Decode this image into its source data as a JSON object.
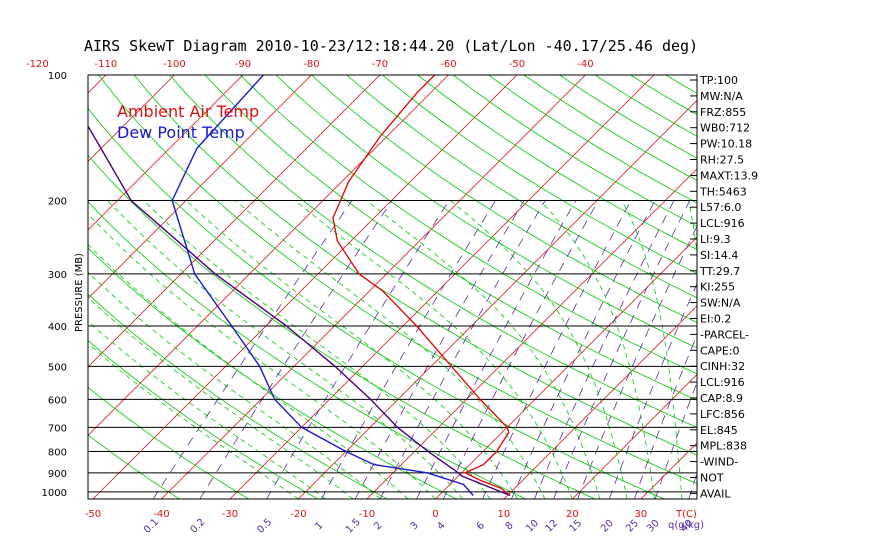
{
  "chart_data": {
    "type": "line",
    "title": "AIRS SkewT Diagram 2010-10-23/12:18:44.20 (Lat/Lon -40.17/25.46 deg)",
    "ylabel": "PRESSURE (MB)",
    "xlabel": "T(C)",
    "mixing_ratio_label": "q(g/kg)",
    "y_scale": "log",
    "ylim": [
      1040,
      100
    ],
    "xlim_bottom": [
      -53,
      40
    ],
    "pressure_ticks": [
      100,
      200,
      300,
      400,
      500,
      600,
      700,
      800,
      900,
      1000
    ],
    "bottom_temp_ticks": [
      -50,
      -40,
      -30,
      -20,
      -10,
      0,
      10,
      20,
      30
    ],
    "top_temp_ticks": [
      -120,
      -110,
      -100,
      -90,
      -80,
      -70,
      -60,
      -50,
      -40
    ],
    "mixing_ratio_ticks": [
      "0.1",
      "0.2",
      "0.5",
      "1",
      "1.5",
      "2",
      "3",
      "4",
      "6",
      "8",
      "10",
      "12",
      "15",
      "20",
      "25",
      "30",
      "40"
    ],
    "legend": [
      {
        "name": "Ambient Air Temp",
        "color": "#e01010"
      },
      {
        "name": "Dew Point Temp",
        "color": "#1a1acc"
      }
    ],
    "colors": {
      "isotherm": "#e01010",
      "dry_adiabat": "#00c800",
      "moist_adiabat": "#00c800",
      "mixing_ratio": "#5a2ca0",
      "parcel": "#4b0082"
    },
    "series": [
      {
        "name": "Ambient Air Temp",
        "color": "#e01010",
        "points": [
          [
            1020,
            10.4
          ],
          [
            980,
            8
          ],
          [
            940,
            4
          ],
          [
            900,
            0.5
          ],
          [
            860,
            2
          ],
          [
            800,
            2
          ],
          [
            720,
            1
          ],
          [
            700,
            0
          ],
          [
            600,
            -8
          ],
          [
            500,
            -17
          ],
          [
            400,
            -28
          ],
          [
            330,
            -38
          ],
          [
            300,
            -44
          ],
          [
            250,
            -52
          ],
          [
            220,
            -56
          ],
          [
            180,
            -59
          ],
          [
            140,
            -61
          ],
          [
            110,
            -62
          ],
          [
            100,
            -62
          ]
        ]
      },
      {
        "name": "Dew Point Temp",
        "color": "#1a1acc",
        "points": [
          [
            1020,
            5
          ],
          [
            960,
            2
          ],
          [
            900,
            -5
          ],
          [
            860,
            -14
          ],
          [
            800,
            -20
          ],
          [
            700,
            -30
          ],
          [
            600,
            -38
          ],
          [
            500,
            -45
          ],
          [
            400,
            -55
          ],
          [
            300,
            -68
          ],
          [
            200,
            -82
          ],
          [
            150,
            -86
          ],
          [
            100,
            -87
          ]
        ]
      },
      {
        "name": "Parcel",
        "color": "#4b0082",
        "points": [
          [
            1020,
            10.4
          ],
          [
            916,
            0.5
          ],
          [
            900,
            -0.5
          ],
          [
            800,
            -8
          ],
          [
            700,
            -16
          ],
          [
            600,
            -24
          ],
          [
            500,
            -34
          ],
          [
            400,
            -47
          ],
          [
            300,
            -65
          ],
          [
            200,
            -88
          ],
          [
            150,
            -100
          ],
          [
            100,
            -117
          ]
        ]
      }
    ]
  },
  "indices": [
    "TP:100",
    "MW:N/A",
    "FRZ:855",
    "WB0:712",
    "PW:10.18",
    "RH:27.5",
    "MAXT:13.9",
    "TH:5463",
    "L57:6.0",
    "LCL:916",
    "LI:9.3",
    "SI:14.4",
    "TT:29.7",
    "KI:255",
    "SW:N/A",
    "EI:0.2",
    "-PARCEL-",
    "CAPE:0",
    "CINH:32",
    "LCL:916",
    "CAP:8.9",
    "LFC:856",
    "EL:845",
    "MPL:838",
    "-WIND-",
    "NOT",
    "AVAIL"
  ]
}
